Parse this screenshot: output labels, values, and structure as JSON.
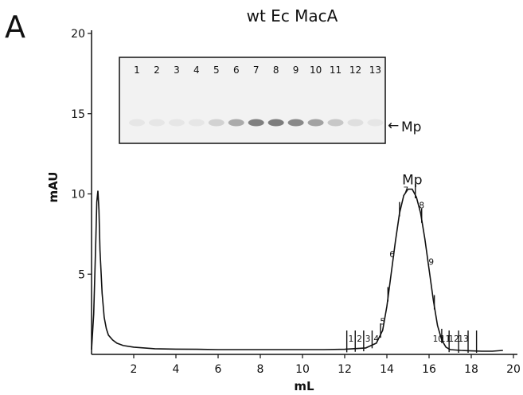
{
  "panel_label": "A",
  "gel": {
    "title": "wt Ec MacA",
    "lanes": [
      "1",
      "2",
      "3",
      "4",
      "5",
      "6",
      "7",
      "8",
      "9",
      "10",
      "11",
      "12",
      "13"
    ],
    "band_intensity": [
      0,
      0,
      0,
      0,
      0.12,
      0.35,
      0.6,
      0.62,
      0.55,
      0.4,
      0.18,
      0.04,
      0
    ],
    "band_label": "Mp",
    "arrow_glyph": "←"
  },
  "chart_data": {
    "type": "line",
    "title": "",
    "xlabel": "mL",
    "ylabel": "mAU",
    "xlim": [
      0,
      20
    ],
    "ylim": [
      0,
      20
    ],
    "x_ticks": [
      2,
      4,
      6,
      8,
      10,
      12,
      14,
      16,
      18,
      20
    ],
    "y_ticks": [
      5,
      10,
      15,
      20
    ],
    "grid": false,
    "series": [
      {
        "x": [
          0.0,
          0.1,
          0.2,
          0.25,
          0.3,
          0.35,
          0.4,
          0.5,
          0.6,
          0.7,
          0.8,
          1.0,
          1.2,
          1.5,
          2.0,
          2.5,
          3.0,
          4.0,
          5.0,
          6.0,
          7.0,
          8.0,
          9.0,
          10.0,
          11.0,
          12.0,
          13.0,
          13.5,
          13.8,
          14.0,
          14.2,
          14.4,
          14.6,
          14.8,
          15.0,
          15.2,
          15.4,
          15.6,
          15.8,
          16.0,
          16.2,
          16.4,
          16.6,
          16.8,
          17.0,
          17.5,
          18.0,
          18.5,
          19.0,
          19.5
        ],
        "y": [
          0.3,
          2.5,
          7.0,
          9.5,
          10.2,
          9.0,
          6.5,
          3.8,
          2.3,
          1.6,
          1.2,
          0.9,
          0.7,
          0.55,
          0.45,
          0.4,
          0.35,
          0.33,
          0.32,
          0.3,
          0.3,
          0.3,
          0.3,
          0.3,
          0.3,
          0.32,
          0.4,
          0.7,
          1.5,
          3.0,
          5.0,
          7.0,
          8.8,
          9.9,
          10.3,
          10.3,
          9.8,
          8.8,
          7.2,
          5.3,
          3.4,
          1.8,
          0.9,
          0.45,
          0.3,
          0.25,
          0.22,
          0.2,
          0.2,
          0.25
        ]
      }
    ],
    "fractions": {
      "labels": [
        "1",
        "2",
        "3",
        "4",
        "5",
        "6",
        "7",
        "8",
        "9",
        "10",
        "11",
        "12",
        "13"
      ],
      "boundaries": [
        12.1,
        12.5,
        12.9,
        13.3,
        13.7,
        14.05,
        14.6,
        15.35,
        15.65,
        16.25,
        16.6,
        16.95,
        17.4,
        17.85,
        18.25
      ]
    },
    "annotations": [
      {
        "text": "Mp",
        "x": 15.2,
        "y": 10.3
      }
    ]
  }
}
